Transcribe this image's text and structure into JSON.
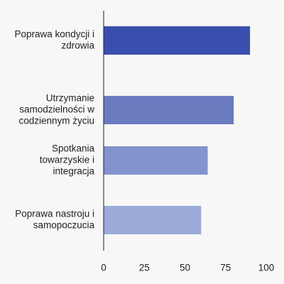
{
  "chart_data": {
    "type": "bar",
    "orientation": "horizontal",
    "title": "",
    "xlabel": "",
    "ylabel": "",
    "categories": [
      [
        "Poprawa kondycji i",
        "zdrowia"
      ],
      [
        "Utrzymanie",
        "samodzielności w",
        "codziennym życiu"
      ],
      [
        "Spotkania",
        "towarzyskie i",
        "integracja"
      ],
      [
        "Poprawa nastroju i",
        "samopoczucia"
      ]
    ],
    "values": [
      90,
      80,
      64,
      60
    ],
    "colors": [
      "#3a4fad",
      "#6b7bc0",
      "#8393cd",
      "#9caad8"
    ],
    "xlim": [
      0,
      100
    ],
    "xticks": [
      "0",
      "25",
      "50",
      "75",
      "100"
    ],
    "grid": false,
    "legend": "none"
  }
}
